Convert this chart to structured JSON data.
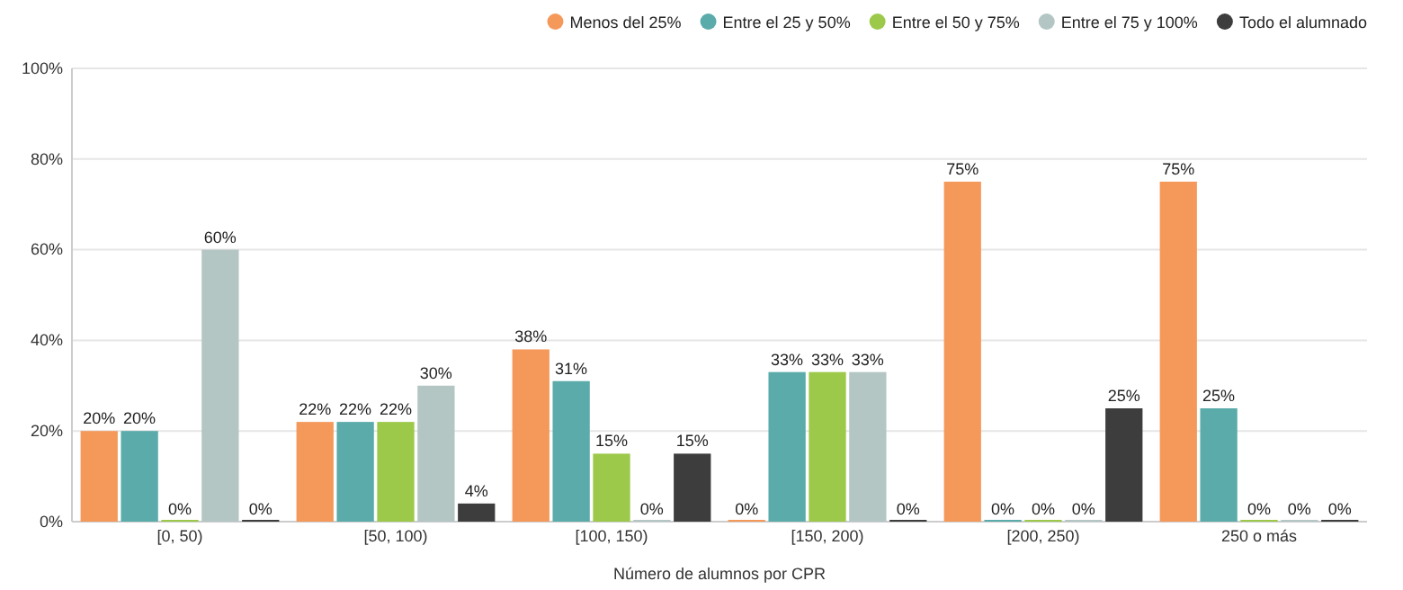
{
  "chart_data": {
    "type": "bar",
    "xlabel": "Número de alumnos por CPR",
    "categories": [
      "[0, 50)",
      "[50, 100)",
      "[100, 150)",
      "[150, 200)",
      "[200, 250)",
      "250 o más"
    ],
    "series": [
      {
        "name": "Menos del 25%",
        "color": "#f4995a",
        "values": [
          20,
          22,
          38,
          0,
          75,
          75
        ],
        "value_labels": [
          "20%",
          "22%",
          "38%",
          "0%",
          "75%",
          "75%"
        ]
      },
      {
        "name": "Entre el 25 y 50%",
        "color": "#5aabaa",
        "values": [
          20,
          22,
          31,
          33,
          0,
          25
        ],
        "value_labels": [
          "20%",
          "22%",
          "31%",
          "33%",
          "0%",
          "25%"
        ]
      },
      {
        "name": "Entre el 50 y 75%",
        "color": "#9cc94a",
        "values": [
          0,
          22,
          15,
          33,
          0,
          0
        ],
        "value_labels": [
          "0%",
          "22%",
          "15%",
          "33%",
          "0%",
          "0%"
        ]
      },
      {
        "name": "Entre el 75 y 100%",
        "color": "#b3c6c4",
        "values": [
          60,
          30,
          0,
          33,
          0,
          0
        ],
        "value_labels": [
          "60%",
          "30%",
          "0%",
          "33%",
          "0%",
          "0%"
        ]
      },
      {
        "name": "Todo el alumnado",
        "color": "#3d3d3d",
        "values": [
          0,
          4,
          15,
          0,
          25,
          0
        ],
        "value_labels": [
          "0%",
          "4%",
          "15%",
          "0%",
          "25%",
          "0%"
        ]
      }
    ],
    "ylim": [
      0,
      100
    ],
    "yticks": [
      {
        "value": 0,
        "label": "0%"
      },
      {
        "value": 20,
        "label": "20%"
      },
      {
        "value": 40,
        "label": "40%"
      },
      {
        "value": 60,
        "label": "60%"
      },
      {
        "value": 80,
        "label": "80%"
      },
      {
        "value": 100,
        "label": "100%"
      }
    ],
    "grid": "y",
    "legend": "top right"
  }
}
